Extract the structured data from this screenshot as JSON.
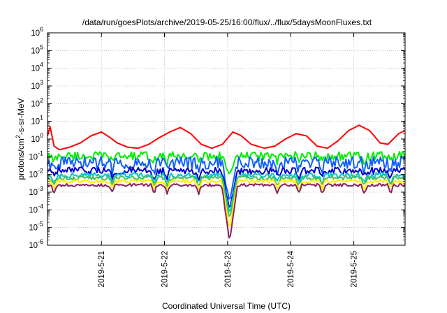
{
  "chart_data": {
    "type": "line",
    "title": "/data/run/goesPlots/archive/2019-05-25/16:00/flux/../flux/5daysMoonFluxes.txt",
    "xlabel": "Coordinated Universal Time (UTC)",
    "ylabel_parts": [
      "protons/cm",
      "2",
      "-s-sr-MeV"
    ],
    "yscale": "log",
    "ylim_exponents": [
      -6,
      6
    ],
    "y_tick_exponents": [
      -6,
      -5,
      -4,
      -3,
      -2,
      -1,
      0,
      1,
      2,
      3,
      4,
      5,
      6
    ],
    "xlim": [
      "2019-05-20T03:30",
      "2019-05-25T19:30"
    ],
    "x_ticks": [
      {
        "date": "2019-05-21",
        "label": "2019-5-21"
      },
      {
        "date": "2019-05-22",
        "label": "2019-5-22"
      },
      {
        "date": "2019-05-23",
        "label": "2019-5-23"
      },
      {
        "date": "2019-05-24",
        "label": "2019-5-24"
      },
      {
        "date": "2019-05-25",
        "label": "2019-5-25"
      }
    ],
    "grid": true,
    "series": [
      {
        "color": "#ff0000",
        "points": [
          [
            "2019-05-20T03:30",
            1.5
          ],
          [
            "2019-05-20T04:30",
            5
          ],
          [
            "2019-05-20T06:00",
            0.4
          ],
          [
            "2019-05-20T08:00",
            0.25
          ],
          [
            "2019-05-20T12:00",
            0.35
          ],
          [
            "2019-05-20T16:00",
            0.6
          ],
          [
            "2019-05-20T20:00",
            1.5
          ],
          [
            "2019-05-21T00:00",
            2.5
          ],
          [
            "2019-05-21T03:00",
            1.3
          ],
          [
            "2019-05-21T06:00",
            0.6
          ],
          [
            "2019-05-21T10:00",
            0.35
          ],
          [
            "2019-05-21T14:00",
            0.3
          ],
          [
            "2019-05-21T18:00",
            0.5
          ],
          [
            "2019-05-21T22:00",
            1.2
          ],
          [
            "2019-05-22T02:00",
            2.5
          ],
          [
            "2019-05-22T06:00",
            4.5
          ],
          [
            "2019-05-22T10:00",
            2
          ],
          [
            "2019-05-22T14:00",
            0.5
          ],
          [
            "2019-05-22T18:00",
            0.3
          ],
          [
            "2019-05-22T22:00",
            0.5
          ],
          [
            "2019-05-23T02:00",
            2.5
          ],
          [
            "2019-05-23T05:00",
            1.6
          ],
          [
            "2019-05-23T09:00",
            0.5
          ],
          [
            "2019-05-23T14:00",
            0.3
          ],
          [
            "2019-05-23T18:00",
            0.4
          ],
          [
            "2019-05-23T22:00",
            1
          ],
          [
            "2019-05-24T02:00",
            2
          ],
          [
            "2019-05-24T06:00",
            1.5
          ],
          [
            "2019-05-24T10:00",
            0.4
          ],
          [
            "2019-05-24T14:00",
            0.3
          ],
          [
            "2019-05-24T18:00",
            0.8
          ],
          [
            "2019-05-24T22:00",
            3
          ],
          [
            "2019-05-25T02:00",
            6
          ],
          [
            "2019-05-25T06:00",
            3
          ],
          [
            "2019-05-25T10:00",
            0.6
          ],
          [
            "2019-05-25T13:00",
            0.5
          ],
          [
            "2019-05-25T17:00",
            2
          ],
          [
            "2019-05-25T19:30",
            3
          ]
        ]
      },
      {
        "color": "#00ee00",
        "base": 0.11,
        "amp": 0.25,
        "dip": 0.01
      },
      {
        "color": "#1060ff",
        "base": 0.045,
        "amp": 0.35,
        "dip": 0.0003
      },
      {
        "color": "#0000cc",
        "base": 0.016,
        "amp": 0.2,
        "dip": 0.0001
      },
      {
        "color": "#00c8c8",
        "base": 0.009,
        "amp": 0.15,
        "dip": 6e-05
      },
      {
        "color": "#40c060",
        "base": 0.0065,
        "amp": 0.12,
        "dip": 3e-05
      },
      {
        "color": "#ffee00",
        "base": 0.0042,
        "amp": 0.1,
        "dip": 8e-06
      },
      {
        "color": "#8b2060",
        "base": 0.0025,
        "amp": 0.08,
        "dip": 1.6e-06
      }
    ]
  }
}
